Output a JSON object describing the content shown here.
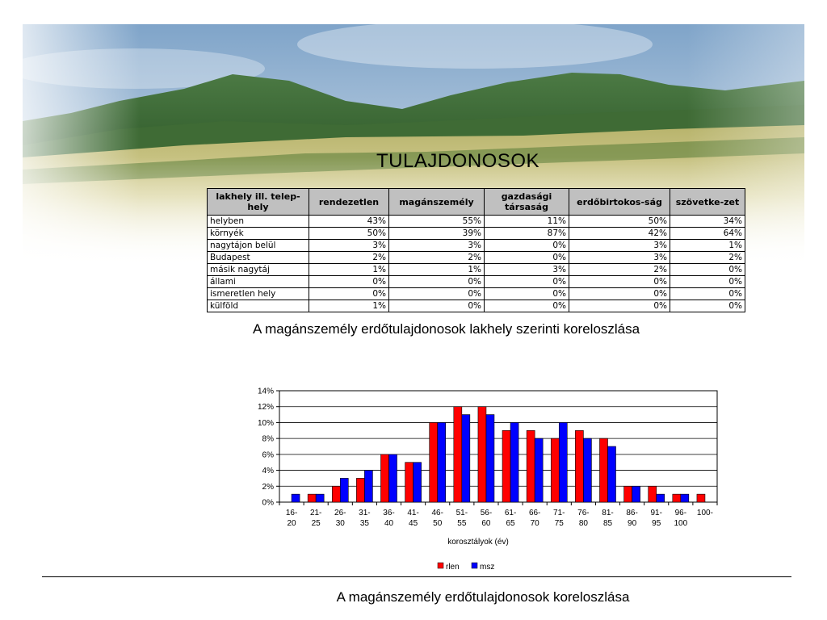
{
  "title": "TULAJDONOSOK",
  "table": {
    "headers": [
      "lakhely ill. telep-hely",
      "rendezetlen",
      "magánszemély",
      "gazdasági társaság",
      "erdőbirtokos-ság",
      "szövetke-zet"
    ],
    "rows": [
      [
        "helyben",
        "43%",
        "55%",
        "11%",
        "50%",
        "34%"
      ],
      [
        "környék",
        "50%",
        "39%",
        "87%",
        "42%",
        "64%"
      ],
      [
        "nagytájon belül",
        "3%",
        "3%",
        "0%",
        "3%",
        "1%"
      ],
      [
        "Budapest",
        "2%",
        "2%",
        "0%",
        "3%",
        "2%"
      ],
      [
        "másik nagytáj",
        "1%",
        "1%",
        "3%",
        "2%",
        "0%"
      ],
      [
        "állami",
        "0%",
        "0%",
        "0%",
        "0%",
        "0%"
      ],
      [
        "ismeretlen hely",
        "0%",
        "0%",
        "0%",
        "0%",
        "0%"
      ],
      [
        "külföld",
        "1%",
        "0%",
        "0%",
        "0%",
        "0%"
      ]
    ]
  },
  "caption_table": "A magánszemély erdőtulajdonosok lakhely szerinti koreloszlása",
  "chart_data": {
    "type": "bar",
    "categories": [
      "16-20",
      "21-25",
      "26-30",
      "31-35",
      "36-40",
      "41-45",
      "46-50",
      "51-55",
      "56-60",
      "61-65",
      "66-70",
      "71-75",
      "76-80",
      "81-85",
      "86-90",
      "91-95",
      "96-100",
      "100-"
    ],
    "category_lines": [
      [
        "16-",
        "20"
      ],
      [
        "21-",
        "25"
      ],
      [
        "26-",
        "30"
      ],
      [
        "31-",
        "35"
      ],
      [
        "36-",
        "40"
      ],
      [
        "41-",
        "45"
      ],
      [
        "46-",
        "50"
      ],
      [
        "51-",
        "55"
      ],
      [
        "56-",
        "60"
      ],
      [
        "61-",
        "65"
      ],
      [
        "66-",
        "70"
      ],
      [
        "71-",
        "75"
      ],
      [
        "76-",
        "80"
      ],
      [
        "81-",
        "85"
      ],
      [
        "86-",
        "90"
      ],
      [
        "91-",
        "95"
      ],
      [
        "96-",
        "100"
      ],
      [
        "100-",
        ""
      ]
    ],
    "series": [
      {
        "name": "rlen",
        "color": "#ff0000",
        "values": [
          0,
          1,
          2,
          3,
          6,
          5,
          10,
          12,
          12,
          9,
          9,
          8,
          9,
          8,
          2,
          2,
          1,
          1
        ]
      },
      {
        "name": "msz",
        "color": "#0000ff",
        "values": [
          1,
          1,
          3,
          4,
          6,
          5,
          10,
          11,
          11,
          10,
          8,
          10,
          8,
          7,
          2,
          1,
          1,
          0
        ]
      }
    ],
    "xlabel": "korosztályok (év)",
    "ylabel": "",
    "ylim": [
      0,
      14
    ],
    "yticks": [
      "0%",
      "2%",
      "4%",
      "6%",
      "8%",
      "10%",
      "12%",
      "14%"
    ],
    "grid": true,
    "legend_position": "bottom"
  },
  "caption_chart": "A magánszemély erdőtulajdonosok koreloszlása"
}
